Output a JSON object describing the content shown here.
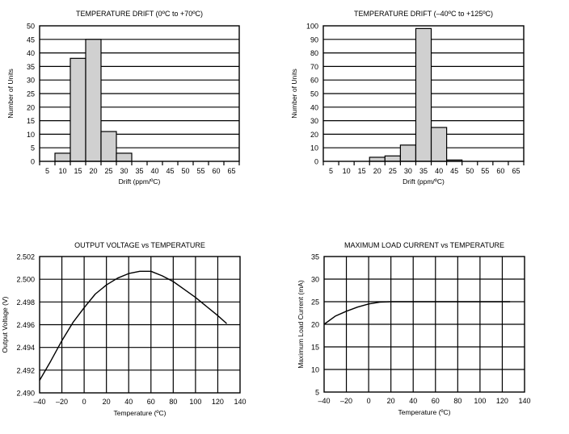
{
  "chart_data": [
    {
      "type": "bar",
      "title": "TEMPERATURE DRIFT (0ºC to +70ºC)",
      "xlabel": "Drift (ppm/ºC)",
      "ylabel": "Number of Units",
      "categories": [
        "5",
        "10",
        "15",
        "20",
        "25",
        "30",
        "35",
        "40",
        "45",
        "50",
        "55",
        "60",
        "65"
      ],
      "values": [
        0,
        3,
        38,
        45,
        11,
        3,
        0,
        0,
        0,
        0,
        0,
        0,
        0
      ],
      "ylim": [
        0,
        50
      ],
      "yticks": [
        "0",
        "5",
        "10",
        "15",
        "20",
        "25",
        "30",
        "35",
        "40",
        "45",
        "50"
      ],
      "grid": true
    },
    {
      "type": "bar",
      "title": "TEMPERATURE DRIFT (–40ºC to +125ºC)",
      "xlabel": "Drift (ppm/ºC)",
      "ylabel": "Number of Units",
      "categories": [
        "5",
        "10",
        "15",
        "20",
        "25",
        "30",
        "35",
        "40",
        "45",
        "50",
        "55",
        "60",
        "65"
      ],
      "values": [
        0,
        0,
        0,
        3,
        4,
        12,
        98,
        25,
        1,
        0,
        0,
        0,
        0
      ],
      "ylim": [
        0,
        100
      ],
      "yticks": [
        "0",
        "10",
        "20",
        "30",
        "40",
        "50",
        "60",
        "70",
        "80",
        "90",
        "100"
      ],
      "grid": true
    },
    {
      "type": "line",
      "title": "OUTPUT VOLTAGE vs TEMPERATURE",
      "xlabel": "Temperature (ºC)",
      "ylabel": "Output Voltage (V)",
      "xlim": [
        -40,
        140
      ],
      "ylim": [
        2.49,
        2.502
      ],
      "xticks": [
        "–40",
        "–20",
        "0",
        "20",
        "40",
        "60",
        "80",
        "100",
        "120",
        "140"
      ],
      "yticks": [
        "2.490",
        "2.492",
        "2.494",
        "2.496",
        "2.498",
        "2.500",
        "2.502"
      ],
      "grid": true,
      "series": [
        {
          "name": "Output Voltage",
          "x": [
            -40,
            -30,
            -20,
            -10,
            0,
            10,
            20,
            30,
            40,
            50,
            60,
            70,
            80,
            90,
            100,
            110,
            120,
            128
          ],
          "y": [
            2.4911,
            2.4928,
            2.4946,
            2.4962,
            2.4975,
            2.4987,
            2.4995,
            2.5001,
            2.5005,
            2.5007,
            2.5007,
            2.5003,
            2.4998,
            2.4991,
            2.4984,
            2.4976,
            2.4968,
            2.4961
          ]
        }
      ]
    },
    {
      "type": "line",
      "title": "MAXIMUM LOAD CURRENT vs TEMPERATURE",
      "xlabel": "Temperature (ºC)",
      "ylabel": "Maximum Load Current (mA)",
      "xlim": [
        -40,
        140
      ],
      "ylim": [
        5,
        35
      ],
      "xticks": [
        "–40",
        "–20",
        "0",
        "20",
        "40",
        "60",
        "80",
        "100",
        "120",
        "140"
      ],
      "yticks": [
        "5",
        "10",
        "15",
        "20",
        "25",
        "30",
        "35"
      ],
      "grid": true,
      "series": [
        {
          "name": "Maximum Load Current",
          "x": [
            -40,
            -30,
            -20,
            -10,
            0,
            10,
            20,
            127
          ],
          "y": [
            20,
            21.8,
            22.9,
            23.8,
            24.5,
            24.9,
            25,
            25
          ]
        }
      ]
    }
  ]
}
